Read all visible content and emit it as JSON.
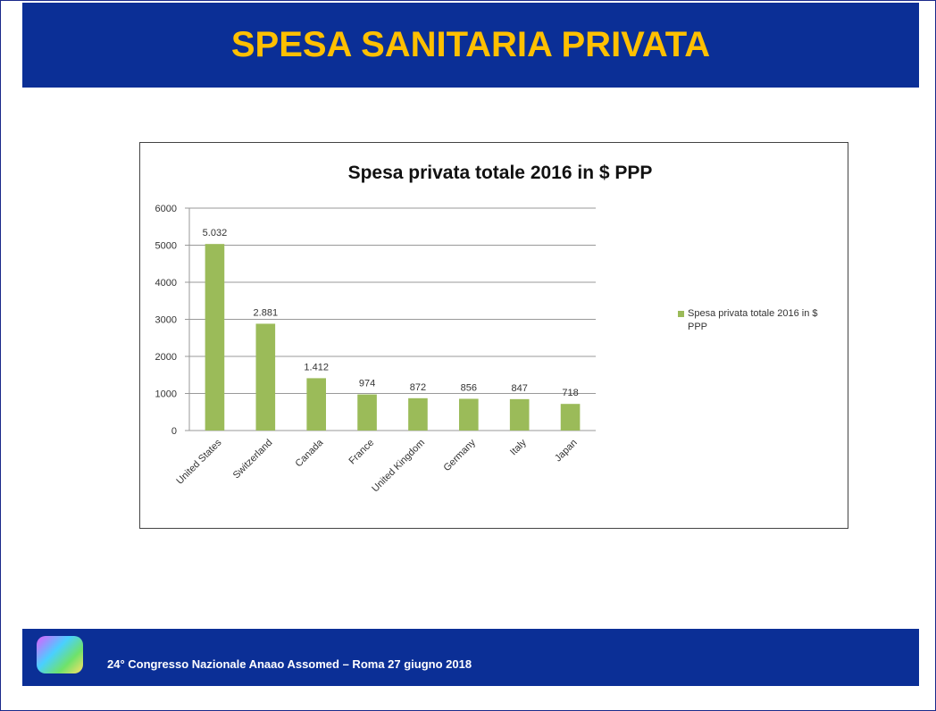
{
  "header": {
    "title": "SPESA SANITARIA PRIVATA"
  },
  "footer": {
    "text": "24° Congresso Nazionale Anaao Assomed – Roma 27 giugno 2018"
  },
  "chart_data": {
    "type": "bar",
    "title": "Spesa privata totale 2016 in $ PPP",
    "categories": [
      "United States",
      "Switzerland",
      "Canada",
      "France",
      "United Kingdom",
      "Germany",
      "Italy",
      "Japan"
    ],
    "series": [
      {
        "name": "Spesa privata totale 2016 in $ PPP",
        "color": "#9bbb59",
        "values": [
          5032,
          2881,
          1412,
          974,
          872,
          856,
          847,
          718
        ],
        "value_labels": [
          "5.032",
          "2.881",
          "1.412",
          "974",
          "872",
          "856",
          "847",
          "718"
        ]
      }
    ],
    "ylim": [
      0,
      6000
    ],
    "yticks": [
      0,
      1000,
      2000,
      3000,
      4000,
      5000,
      6000
    ],
    "grid": true,
    "legend": "right"
  }
}
